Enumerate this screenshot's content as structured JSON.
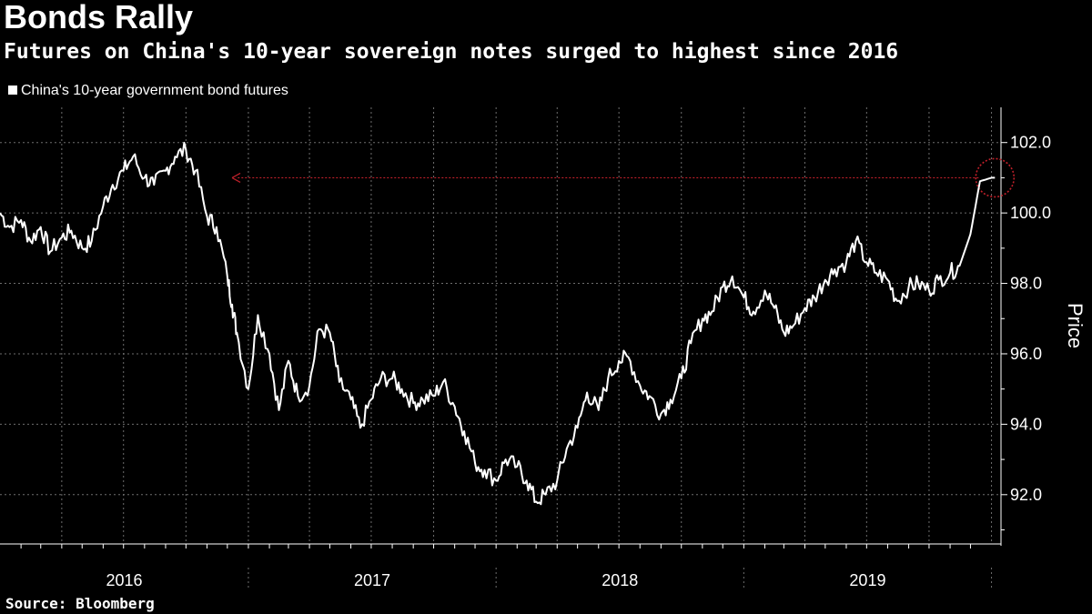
{
  "title": "Bonds Rally",
  "subtitle": "Futures on China's 10-year sovereign notes surged to highest since 2016",
  "source": "Source: Bloomberg",
  "colors": {
    "background": "#000000",
    "line": "#ffffff",
    "grid": "#6e6e6e",
    "annotation": "#c0202a"
  },
  "chart_data": {
    "type": "line",
    "title": "Bonds Rally",
    "subtitle": "Futures on China's 10-year sovereign notes surged to highest since 2016",
    "ylabel": "Price",
    "xlabel": "",
    "ylim": [
      90.6,
      103.0
    ],
    "yticks": [
      92.0,
      94.0,
      96.0,
      98.0,
      100.0,
      102.0
    ],
    "ytick_labels": [
      "92.0",
      "94.0",
      "96.0",
      "98.0",
      "100.0",
      "102.0"
    ],
    "xlim": [
      "2016-01-01",
      "2020-01-15"
    ],
    "x_labels": [
      "2016",
      "2017",
      "2018",
      "2019"
    ],
    "grid": true,
    "legend_position": "top-left",
    "series": [
      {
        "name": "China's 10-year government bond futures",
        "x": [
          "2016-01-01",
          "2016-01-15",
          "2016-02-01",
          "2016-02-15",
          "2016-03-01",
          "2016-03-15",
          "2016-04-01",
          "2016-04-15",
          "2016-05-01",
          "2016-05-15",
          "2016-06-01",
          "2016-06-15",
          "2016-07-01",
          "2016-07-15",
          "2016-08-01",
          "2016-08-15",
          "2016-09-01",
          "2016-09-15",
          "2016-10-01",
          "2016-10-15",
          "2016-11-01",
          "2016-11-15",
          "2016-12-01",
          "2016-12-08",
          "2016-12-15",
          "2017-01-01",
          "2017-01-15",
          "2017-02-01",
          "2017-02-15",
          "2017-03-01",
          "2017-03-15",
          "2017-04-01",
          "2017-04-15",
          "2017-05-01",
          "2017-05-15",
          "2017-06-01",
          "2017-06-15",
          "2017-07-01",
          "2017-07-15",
          "2017-08-01",
          "2017-08-15",
          "2017-09-01",
          "2017-09-15",
          "2017-10-01",
          "2017-10-15",
          "2017-11-01",
          "2017-11-15",
          "2017-12-01",
          "2017-12-15",
          "2018-01-01",
          "2018-01-15",
          "2018-02-01",
          "2018-02-15",
          "2018-03-01",
          "2018-03-15",
          "2018-04-01",
          "2018-04-15",
          "2018-05-01",
          "2018-05-15",
          "2018-06-01",
          "2018-06-15",
          "2018-07-01",
          "2018-07-15",
          "2018-08-01",
          "2018-08-15",
          "2018-09-01",
          "2018-09-15",
          "2018-10-01",
          "2018-10-15",
          "2018-11-01",
          "2018-11-15",
          "2018-12-01",
          "2018-12-15",
          "2019-01-01",
          "2019-01-15",
          "2019-02-01",
          "2019-02-15",
          "2019-03-01",
          "2019-03-15",
          "2019-04-01",
          "2019-04-15",
          "2019-05-01",
          "2019-05-15",
          "2019-06-01",
          "2019-06-15",
          "2019-07-01",
          "2019-07-15",
          "2019-08-01",
          "2019-08-15",
          "2019-09-01",
          "2019-09-15",
          "2019-10-01",
          "2019-10-15",
          "2019-11-01",
          "2019-11-15",
          "2019-12-01",
          "2019-12-15",
          "2020-01-01",
          "2020-01-06"
        ],
        "values": [
          100.0,
          99.6,
          99.8,
          99.2,
          99.6,
          98.9,
          99.3,
          99.5,
          99.0,
          99.2,
          100.2,
          100.8,
          101.2,
          101.6,
          101.0,
          100.8,
          101.2,
          101.6,
          101.8,
          101.2,
          99.9,
          99.6,
          98.2,
          97.4,
          96.6,
          95.0,
          97.1,
          96.0,
          94.4,
          95.8,
          94.8,
          95.1,
          96.7,
          96.6,
          95.2,
          94.7,
          93.9,
          94.7,
          95.3,
          95.3,
          95.0,
          94.6,
          94.7,
          94.8,
          95.2,
          94.5,
          93.8,
          92.9,
          92.7,
          92.4,
          93.0,
          92.8,
          92.4,
          91.8,
          92.0,
          92.4,
          93.3,
          93.9,
          94.9,
          94.4,
          95.3,
          95.8,
          95.9,
          95.1,
          94.8,
          94.3,
          94.7,
          95.3,
          96.3,
          97.0,
          97.2,
          97.9,
          98.2,
          97.6,
          97.2,
          97.8,
          97.3,
          96.6,
          96.8,
          97.3,
          97.6,
          98.1,
          98.4,
          98.6,
          99.2,
          98.6,
          98.3,
          98.1,
          97.5,
          97.9,
          98.0,
          97.8,
          98.1,
          98.3,
          98.5,
          99.4,
          100.9,
          101.0,
          101.0
        ]
      }
    ],
    "annotations": [
      {
        "type": "reference-arrow",
        "y": 101.0,
        "x_from": "2020-01-06",
        "x_to": "2016-12-08"
      },
      {
        "type": "highlight-circle",
        "x": "2020-01-06",
        "y": 101.0
      }
    ]
  }
}
